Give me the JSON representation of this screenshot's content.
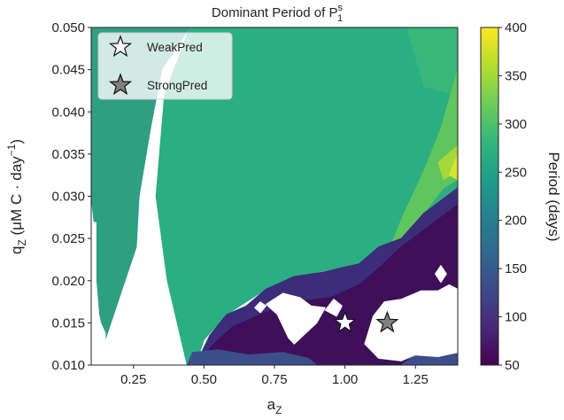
{
  "chart_data": {
    "type": "heatmap",
    "title": "Dominant Period of P",
    "title_sup": "s",
    "title_sub": "1",
    "xlabel_main": "a",
    "xlabel_sub": "Z",
    "ylabel_main": "q",
    "ylabel_sub": "Z",
    "ylabel_rest": " (μM C · day",
    "ylabel_exp": "−1",
    "ylabel_close": ")",
    "xlim": [
      0.1,
      1.4
    ],
    "ylim": [
      0.01,
      0.05
    ],
    "xticks": [
      {
        "value": 0.25,
        "label": "0.25"
      },
      {
        "value": 0.5,
        "label": "0.50"
      },
      {
        "value": 0.75,
        "label": "0.75"
      },
      {
        "value": 1.0,
        "label": "1.00"
      },
      {
        "value": 1.25,
        "label": "1.25"
      }
    ],
    "yticks": [
      {
        "value": 0.01,
        "label": "0.010"
      },
      {
        "value": 0.015,
        "label": "0.015"
      },
      {
        "value": 0.02,
        "label": "0.020"
      },
      {
        "value": 0.025,
        "label": "0.025"
      },
      {
        "value": 0.03,
        "label": "0.030"
      },
      {
        "value": 0.035,
        "label": "0.035"
      },
      {
        "value": 0.04,
        "label": "0.040"
      },
      {
        "value": 0.045,
        "label": "0.045"
      },
      {
        "value": 0.05,
        "label": "0.050"
      }
    ],
    "colorbar": {
      "label": "Period (days)",
      "range": [
        50,
        400
      ],
      "ticks": [
        {
          "value": 50,
          "label": "50"
        },
        {
          "value": 100,
          "label": "100"
        },
        {
          "value": 150,
          "label": "150"
        },
        {
          "value": 200,
          "label": "200"
        },
        {
          "value": 250,
          "label": "250"
        },
        {
          "value": 300,
          "label": "300"
        },
        {
          "value": 350,
          "label": "350"
        },
        {
          "value": 400,
          "label": "400"
        }
      ],
      "colormap": "viridis",
      "colors": [
        "#440154",
        "#482878",
        "#3e4989",
        "#31688e",
        "#26828e",
        "#1f9e89",
        "#35b779",
        "#6ece58",
        "#b5de2b",
        "#fde725"
      ]
    },
    "regions": [
      {
        "name": "period-250",
        "color": "#2f9f82",
        "points": [
          [
            0.1,
            0.05
          ],
          [
            0.45,
            0.05
          ],
          [
            0.35,
            0.045
          ],
          [
            0.31,
            0.038
          ],
          [
            0.27,
            0.03
          ],
          [
            0.26,
            0.024
          ],
          [
            0.22,
            0.02
          ],
          [
            0.15,
            0.013
          ],
          [
            0.13,
            0.016
          ],
          [
            0.12,
            0.02
          ],
          [
            0.12,
            0.027
          ],
          [
            0.11,
            0.027
          ],
          [
            0.1,
            0.03
          ]
        ]
      },
      {
        "name": "period-260",
        "color": "#2bae81",
        "points": [
          [
            0.45,
            0.05
          ],
          [
            1.22,
            0.05
          ],
          [
            1.28,
            0.043
          ],
          [
            1.4,
            0.042
          ],
          [
            1.4,
            0.028
          ],
          [
            1.25,
            0.027
          ],
          [
            1.2,
            0.025
          ],
          [
            1.05,
            0.022
          ],
          [
            0.9,
            0.021
          ],
          [
            0.72,
            0.019
          ],
          [
            0.58,
            0.016
          ],
          [
            0.5,
            0.013
          ],
          [
            0.47,
            0.01
          ],
          [
            0.44,
            0.01
          ],
          [
            0.37,
            0.02
          ],
          [
            0.33,
            0.03
          ],
          [
            0.36,
            0.042
          ]
        ]
      },
      {
        "name": "period-270",
        "color": "#37b779",
        "points": [
          [
            1.22,
            0.05
          ],
          [
            1.4,
            0.05
          ],
          [
            1.4,
            0.042
          ],
          [
            1.28,
            0.043
          ]
        ]
      },
      {
        "name": "period-300",
        "color": "#5fc55e",
        "points": [
          [
            1.4,
            0.045
          ],
          [
            1.4,
            0.032
          ],
          [
            1.35,
            0.031
          ],
          [
            1.28,
            0.028
          ],
          [
            1.21,
            0.025
          ],
          [
            1.16,
            0.024
          ],
          [
            1.21,
            0.028
          ],
          [
            1.28,
            0.033
          ],
          [
            1.34,
            0.038
          ]
        ]
      },
      {
        "name": "period-340",
        "color": "#a5d83b",
        "points": [
          [
            1.4,
            0.036
          ],
          [
            1.4,
            0.033
          ],
          [
            1.35,
            0.032
          ],
          [
            1.33,
            0.034
          ]
        ]
      },
      {
        "name": "period-380",
        "color": "#d9e433",
        "points": [
          [
            1.4,
            0.035
          ],
          [
            1.4,
            0.032
          ],
          [
            1.37,
            0.0325
          ]
        ]
      },
      {
        "name": "period-70",
        "color": "#3b2d7a",
        "points": [
          [
            0.47,
            0.01
          ],
          [
            0.52,
            0.0135
          ],
          [
            0.58,
            0.016
          ],
          [
            0.65,
            0.017
          ],
          [
            0.72,
            0.019
          ],
          [
            0.82,
            0.0205
          ],
          [
            0.92,
            0.021
          ],
          [
            1.05,
            0.022
          ],
          [
            1.12,
            0.024
          ],
          [
            1.2,
            0.025
          ],
          [
            1.28,
            0.028
          ],
          [
            1.4,
            0.031
          ],
          [
            1.4,
            0.01
          ]
        ]
      },
      {
        "name": "period-55",
        "color": "#3f0f5a",
        "points": [
          [
            0.5,
            0.01
          ],
          [
            0.52,
            0.012
          ],
          [
            0.6,
            0.0145
          ],
          [
            0.7,
            0.016
          ],
          [
            0.82,
            0.0175
          ],
          [
            0.95,
            0.018
          ],
          [
            1.05,
            0.0195
          ],
          [
            1.12,
            0.0215
          ],
          [
            1.2,
            0.024
          ],
          [
            1.3,
            0.0265
          ],
          [
            1.4,
            0.029
          ],
          [
            1.4,
            0.01
          ]
        ]
      },
      {
        "name": "period-150",
        "color": "#3c4e8a",
        "points": [
          [
            0.44,
            0.01
          ],
          [
            0.46,
            0.0115
          ],
          [
            0.55,
            0.0118
          ],
          [
            0.66,
            0.0112
          ],
          [
            0.78,
            0.0115
          ],
          [
            0.87,
            0.0108
          ],
          [
            0.9,
            0.01
          ]
        ]
      },
      {
        "name": "period-150b",
        "color": "#3c4e8a",
        "points": [
          [
            1.2,
            0.01
          ],
          [
            1.25,
            0.0112
          ],
          [
            1.33,
            0.011
          ],
          [
            1.4,
            0.0115
          ],
          [
            1.4,
            0.01
          ]
        ]
      },
      {
        "name": "period-none-1",
        "color": "#ffffff",
        "points": [
          [
            0.11,
            0.0105
          ],
          [
            0.11,
            0.0145
          ],
          [
            0.13,
            0.0152
          ],
          [
            0.15,
            0.0138
          ],
          [
            0.15,
            0.011
          ],
          [
            0.13,
            0.01
          ]
        ]
      },
      {
        "name": "period-none-2",
        "color": "#ffffff",
        "points": [
          [
            0.68,
            0.0168
          ],
          [
            0.7,
            0.0175
          ],
          [
            0.72,
            0.017
          ],
          [
            0.7,
            0.0162
          ]
        ]
      },
      {
        "name": "period-none-3",
        "color": "#ffffff",
        "points": [
          [
            0.72,
            0.0172
          ],
          [
            0.78,
            0.0185
          ],
          [
            0.84,
            0.018
          ],
          [
            0.88,
            0.017
          ],
          [
            0.93,
            0.0168
          ],
          [
            0.9,
            0.015
          ],
          [
            0.82,
            0.0125
          ],
          [
            0.8,
            0.0132
          ],
          [
            0.76,
            0.016
          ]
        ]
      },
      {
        "name": "period-none-4",
        "color": "#ffffff",
        "points": [
          [
            0.93,
            0.0165
          ],
          [
            0.96,
            0.0178
          ],
          [
            0.99,
            0.017
          ],
          [
            0.97,
            0.0158
          ]
        ]
      },
      {
        "name": "period-none-5",
        "color": "#ffffff",
        "points": [
          [
            1.07,
            0.0125
          ],
          [
            1.1,
            0.0158
          ],
          [
            1.14,
            0.0175
          ],
          [
            1.2,
            0.0178
          ],
          [
            1.27,
            0.0188
          ],
          [
            1.33,
            0.0188
          ],
          [
            1.37,
            0.0195
          ],
          [
            1.4,
            0.019
          ],
          [
            1.4,
            0.0115
          ],
          [
            1.33,
            0.011
          ],
          [
            1.25,
            0.0112
          ],
          [
            1.2,
            0.0105
          ],
          [
            1.12,
            0.0108
          ]
        ]
      },
      {
        "name": "period-none-6",
        "color": "#ffffff",
        "points": [
          [
            1.32,
            0.0208
          ],
          [
            1.34,
            0.0218
          ],
          [
            1.36,
            0.0208
          ],
          [
            1.34,
            0.0198
          ]
        ]
      },
      {
        "name": "period-none-7",
        "color": "#ffffff",
        "points": [
          [
            1.15,
            0.0152
          ],
          [
            1.17,
            0.016
          ],
          [
            1.19,
            0.015
          ],
          [
            1.17,
            0.0144
          ]
        ]
      }
    ],
    "markers": [
      {
        "label": "WeakPred",
        "x": 1.0,
        "y": 0.015,
        "fill": "#ffffff"
      },
      {
        "label": "StrongPred",
        "x": 1.15,
        "y": 0.015,
        "fill": "#808080"
      }
    ],
    "legend_position": "top-left"
  }
}
